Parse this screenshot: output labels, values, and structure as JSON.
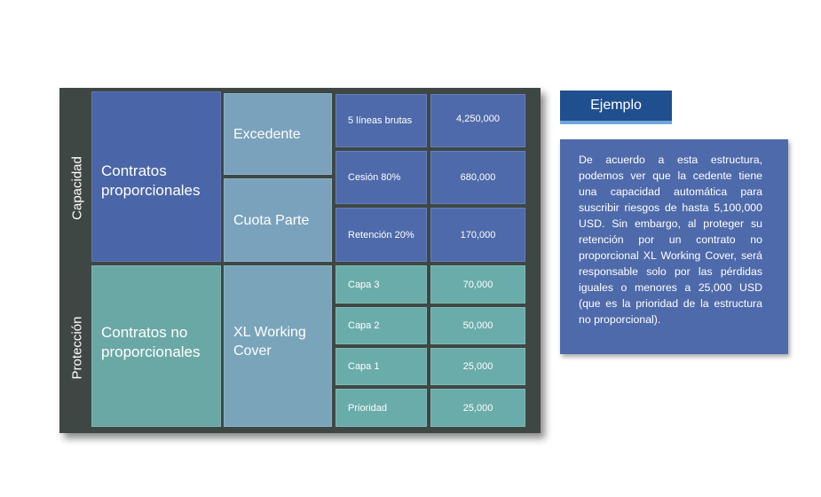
{
  "side_labels": {
    "top": "Capacidad",
    "bottom": "Protección"
  },
  "left_column": {
    "top": "Contratos proporcionales",
    "bottom": "Contratos no proporcionales"
  },
  "middle_column": {
    "excedente": "Excedente",
    "cuota_parte": "Cuota Parte",
    "xl": "XL Working Cover"
  },
  "capacity_rows": [
    {
      "label": "5 líneas brutas",
      "value": "4,250,000"
    },
    {
      "label": "Cesión 80%",
      "value": "680,000"
    },
    {
      "label": "Retención 20%",
      "value": "170,000"
    }
  ],
  "protection_rows": [
    {
      "label": "Capa 3",
      "value": "70,000"
    },
    {
      "label": "Capa 2",
      "value": "50,000"
    },
    {
      "label": "Capa 1",
      "value": "25,000"
    },
    {
      "label": "Prioridad",
      "value": "25,000"
    }
  ],
  "example": {
    "title": "Ejemplo",
    "text": "De acuerdo a esta estructura, podemos ver que la cedente tiene una capacidad automática para suscribir riesgos de hasta 5,100,000 USD. Sin embargo, al proteger su retención por un contrato no proporcional XL Working Cover, será responsable solo por las pérdidas iguales o menores a 25,000 USD (que es la prioridad de la estructura no proporcional)."
  },
  "colors": {
    "panel": "#3f4744",
    "capacity_dark": "#4a66a8",
    "capacity_light": "#7aa2bd",
    "protection_dark": "#6aa8a6",
    "example_title": "#1f4f8f",
    "example_box": "#4e6aab"
  }
}
